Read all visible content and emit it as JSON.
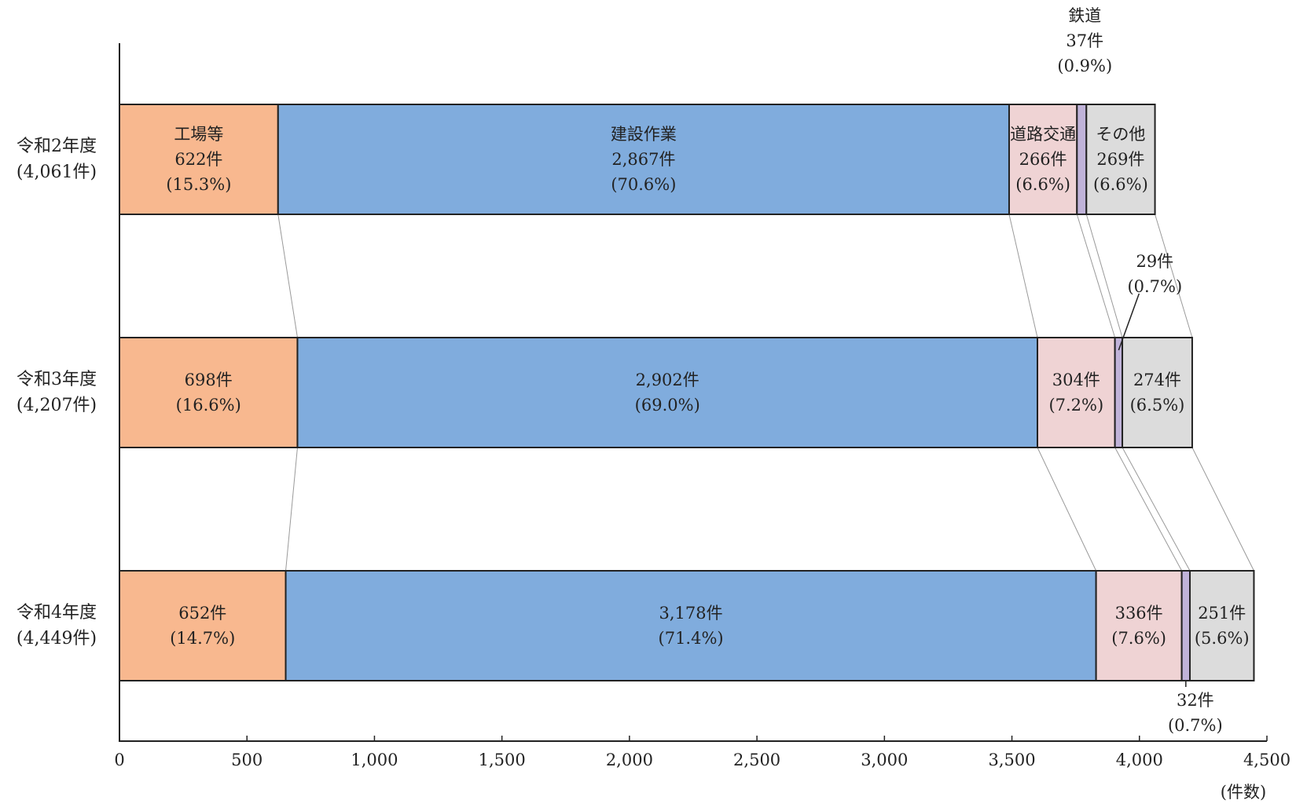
{
  "chart_data": {
    "type": "bar",
    "orientation": "horizontal",
    "stacked": true,
    "categories": [
      "令和2年度",
      "令和3年度",
      "令和4年度"
    ],
    "category_labels": [
      [
        "令和2年度",
        "(4,061件)"
      ],
      [
        "令和3年度",
        "(4,207件)"
      ],
      [
        "令和4年度",
        "(4,449件)"
      ]
    ],
    "totals": [
      4061,
      4207,
      4449
    ],
    "series": [
      {
        "name": "工場等",
        "color": "#f8b88f",
        "values": [
          622,
          698,
          652
        ]
      },
      {
        "name": "建設作業",
        "color": "#80acdd",
        "values": [
          2867,
          2902,
          3178
        ]
      },
      {
        "name": "道路交通",
        "color": "#efd3d4",
        "values": [
          266,
          304,
          336
        ]
      },
      {
        "name": "鉄道",
        "color": "#c0b3d9",
        "values": [
          37,
          29,
          32
        ]
      },
      {
        "name": "その他",
        "color": "#dcdcdc",
        "values": [
          269,
          274,
          251
        ]
      }
    ],
    "segment_labels": [
      [
        [
          "工場等",
          "622件",
          "(15.3%)"
        ],
        [
          "建設作業",
          "2,867件",
          "(70.6%)"
        ],
        [
          "道路交通",
          "266件",
          "(6.6%)"
        ],
        [
          "鉄道",
          "37件",
          "(0.9%)"
        ],
        [
          "その他",
          "269件",
          "(6.6%)"
        ]
      ],
      [
        [
          "698件",
          "(16.6%)"
        ],
        [
          "2,902件",
          "(69.0%)"
        ],
        [
          "304件",
          "(7.2%)"
        ],
        [
          "29件",
          "(0.7%)"
        ],
        [
          "274件",
          "(6.5%)"
        ]
      ],
      [
        [
          "652件",
          "(14.7%)"
        ],
        [
          "3,178件",
          "(71.4%)"
        ],
        [
          "336件",
          "(7.6%)"
        ],
        [
          "32件",
          "(0.7%)"
        ],
        [
          "251件",
          "(5.6%)"
        ]
      ]
    ],
    "xlim": [
      0,
      4500
    ],
    "xticks": [
      0,
      500,
      1000,
      1500,
      2000,
      2500,
      3000,
      3500,
      4000,
      4500
    ],
    "xtick_labels": [
      "0",
      "500",
      "1,000",
      "1,500",
      "2,000",
      "2,500",
      "3,000",
      "3,500",
      "4,000",
      "4,500"
    ],
    "xlabel": "(件数)",
    "title": "",
    "grid": false,
    "legend": "none",
    "connector_lines": true
  }
}
